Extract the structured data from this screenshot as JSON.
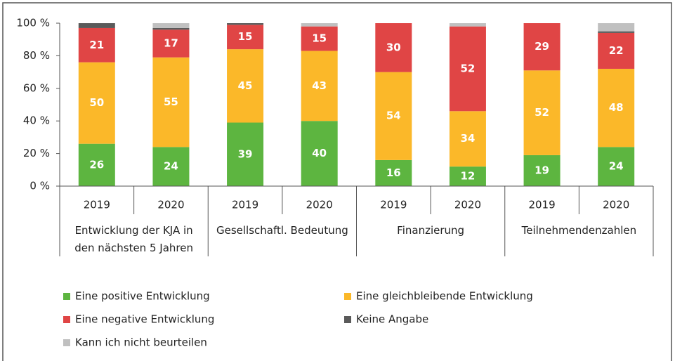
{
  "chart_data": {
    "type": "stacked_bar",
    "categories": [
      "2019",
      "2020",
      "2019",
      "2020",
      "2019",
      "2020",
      "2019",
      "2020"
    ],
    "groups": [
      "Entwicklung der KJA in den nächsten 5 Jahren",
      "Gesellschaftl. Bedeutung",
      "Finanzierung",
      "Teilnehmendenzahlen"
    ],
    "series": [
      {
        "name": "Eine positive Entwicklung",
        "color": "#5db540",
        "values": [
          26,
          24,
          39,
          40,
          16,
          12,
          19,
          24
        ],
        "show_labels": true
      },
      {
        "name": "Eine gleichbleibende Entwicklung",
        "color": "#fbb829",
        "values": [
          50,
          55,
          45,
          43,
          54,
          34,
          52,
          48
        ],
        "show_labels": true
      },
      {
        "name": "Eine negative Entwicklung",
        "color": "#e04545",
        "values": [
          21,
          17,
          15,
          15,
          30,
          52,
          29,
          22
        ],
        "show_labels": true
      },
      {
        "name": "Keine Angabe",
        "color": "#5a5a5a",
        "values": [
          3,
          1,
          1,
          0,
          0,
          0,
          0,
          1
        ],
        "show_labels": false
      },
      {
        "name": "Kann ich nicht beurteilen",
        "color": "#c0c0c0",
        "values": [
          0,
          3,
          0,
          2,
          0,
          2,
          0,
          5
        ],
        "show_labels": false
      }
    ],
    "ylim": [
      0,
      100
    ],
    "yticks": [
      {
        "value": 0,
        "label": "0 %"
      },
      {
        "value": 20,
        "label": "20 %"
      },
      {
        "value": 40,
        "label": "40 %"
      },
      {
        "value": 60,
        "label": "60 %"
      },
      {
        "value": 80,
        "label": "80 %"
      },
      {
        "value": 100,
        "label": "100 %"
      }
    ],
    "grid": false,
    "legend": "bottom"
  }
}
